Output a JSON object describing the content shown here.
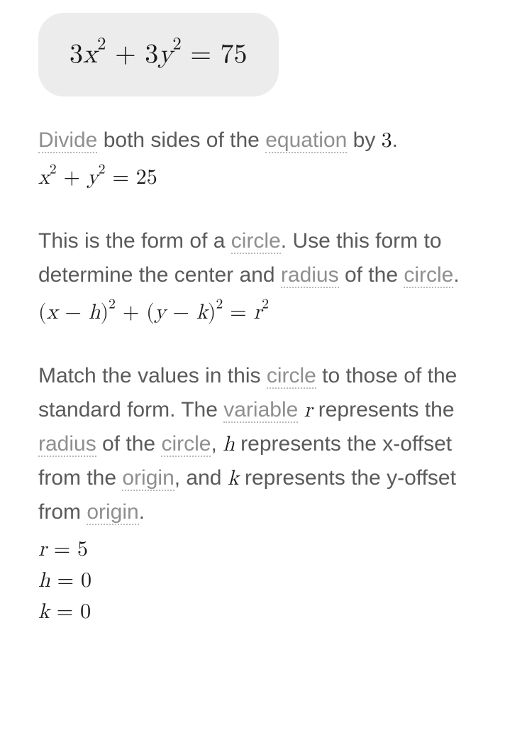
{
  "colors": {
    "box_bg": "#ececec",
    "body_bg": "#ffffff",
    "prose_text": "#5a5a5a",
    "math_text": "#1a1a1a",
    "term_text": "#8f8f8f",
    "term_underline": "#b8b8b8"
  },
  "typography": {
    "main_equation_fontsize": 38,
    "prose_fontsize": 30,
    "inline_equation_fontsize": 30,
    "box_border_radius": 36
  },
  "main_equation": {
    "coef1": "3",
    "var1": "x",
    "exp1": "2",
    "plus": " + ",
    "coef2": "3",
    "var2": "y",
    "exp2": "2",
    "eq": " = ",
    "rhs": "75"
  },
  "step1": {
    "text_parts": {
      "t1": "Divide",
      "t2": " both sides of the ",
      "t3": "equation",
      "t4": " by ",
      "t5": "3",
      "t6": "."
    },
    "equation": {
      "var1": "x",
      "exp1": "2",
      "plus": " + ",
      "var2": "y",
      "exp2": "2",
      "eq": " = ",
      "rhs": "25"
    }
  },
  "step2": {
    "text_parts": {
      "t1": "This is the form of a ",
      "t2": "circle",
      "t3": ". Use this form to determine the center and ",
      "t4": "radius",
      "t5": " of the ",
      "t6": "circle",
      "t7": "."
    },
    "equation": {
      "lp1": "(",
      "var1": "x",
      "minus1": " − ",
      "h": "h",
      "rp1": ")",
      "exp1": "2",
      "plus": " + ",
      "lp2": "(",
      "var2": "y",
      "minus2": " − ",
      "k": "k",
      "rp2": ")",
      "exp2": "2",
      "eq": " = ",
      "r": "r",
      "expR": "2"
    }
  },
  "step3": {
    "text_parts": {
      "t1": "Match the values in this ",
      "t2": "circle",
      "t3": " to those of the standard form. The ",
      "t4": "variable",
      "t5": " ",
      "v_r": "r",
      "t6": " represents the ",
      "t7": "radius",
      "t8": " of the ",
      "t9": "circle",
      "t10": ", ",
      "v_h": "h",
      "t11": " represents the x-offset from the ",
      "t12": "origin",
      "t13": ", and ",
      "v_k": "k",
      "t14": " represents the y-offset from ",
      "t15": "origin",
      "t16": "."
    },
    "results": {
      "r": {
        "var": "r",
        "eq": " = ",
        "val": "5"
      },
      "h": {
        "var": "h",
        "eq": " = ",
        "val": "0"
      },
      "k": {
        "var": "k",
        "eq": " = ",
        "val": "0"
      }
    }
  }
}
